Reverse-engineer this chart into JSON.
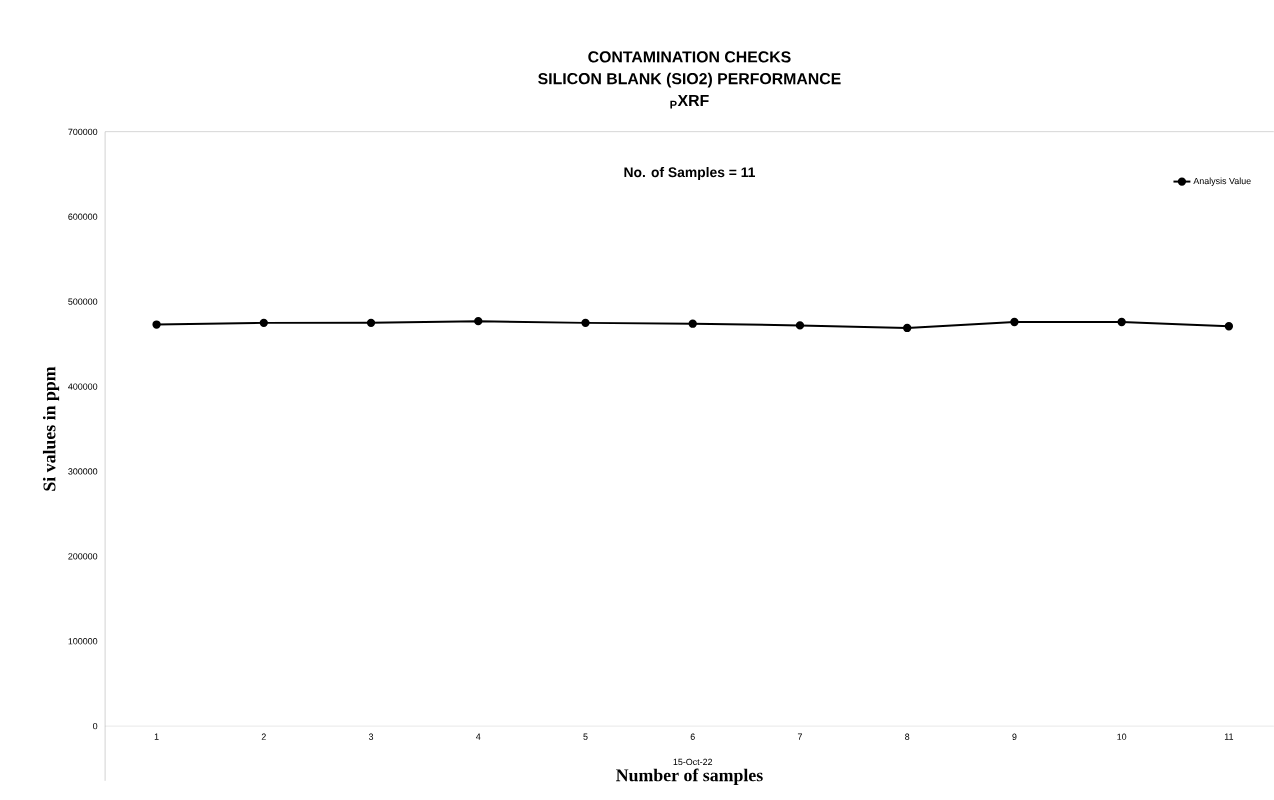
{
  "chart_data": {
    "type": "line",
    "title": "CONTAMINATION CHECKS\nSILICON BLANK (SIO2) PERFORMANCE\n$_{P}$XRF",
    "xlabel": "Number of samples",
    "ylabel": "Si values in ppm",
    "annotations": [
      "No. of Samples = 11",
      "15-Oct-22"
    ],
    "categories": [
      "1",
      "2",
      "3",
      "4",
      "5",
      "6",
      "7",
      "8",
      "9",
      "10",
      "11"
    ],
    "series": [
      {
        "name": "Analysis Value",
        "color": "#000000",
        "values": [
          473000,
          475000,
          475000,
          477000,
          475000,
          474000,
          472000,
          469000,
          476000,
          476000,
          471000
        ]
      }
    ],
    "ylim": [
      0,
      700000
    ],
    "yticks": [
      0,
      100000,
      200000,
      300000,
      400000,
      500000,
      600000,
      700000
    ],
    "marker": "circle",
    "line_style": "solid",
    "legend": "top right",
    "grid": false
  }
}
